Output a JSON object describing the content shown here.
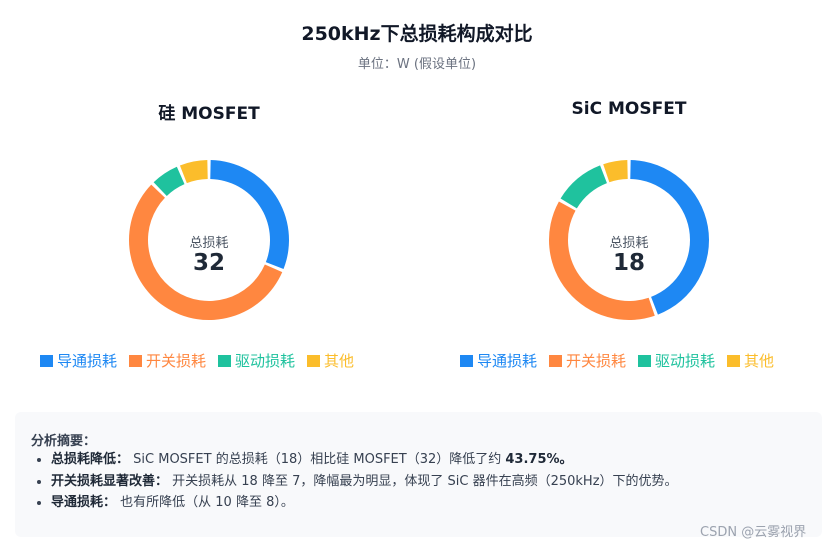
{
  "title": "250kHz下总损耗构成对比",
  "subtitle": "单位：W (假设单位)",
  "colors": {
    "conduction": "#1e88f3",
    "switching": "#ff8740",
    "drive": "#1fc29e",
    "other": "#fbbd2b"
  },
  "chart_data": [
    {
      "type": "pie",
      "title": "硅 MOSFET",
      "center_label": "总损耗",
      "center_value": "32",
      "categories": [
        "导通损耗",
        "开关损耗",
        "驱动损耗",
        "其他"
      ],
      "values": [
        10,
        18,
        2,
        2
      ]
    },
    {
      "type": "pie",
      "title": "SiC MOSFET",
      "center_label": "总损耗",
      "center_value": "18",
      "categories": [
        "导通损耗",
        "开关损耗",
        "驱动损耗",
        "其他"
      ],
      "values": [
        8,
        7,
        2,
        1
      ]
    }
  ],
  "summary": {
    "heading": "分析摘要：",
    "items": [
      {
        "label": "总损耗降低：",
        "text": "SiC MOSFET 的总损耗（18）相比硅 MOSFET（32）降低了约 ",
        "highlight": "43.75%。"
      },
      {
        "label": "开关损耗显著改善：",
        "text": "开关损耗从 18 降至 7，降幅最为明显，体现了 SiC 器件在高频（250kHz）下的优势。"
      },
      {
        "label": "导通损耗：",
        "text": "也有所降低（从 10 降至 8）。"
      }
    ]
  },
  "watermark": "CSDN @云雾视界"
}
